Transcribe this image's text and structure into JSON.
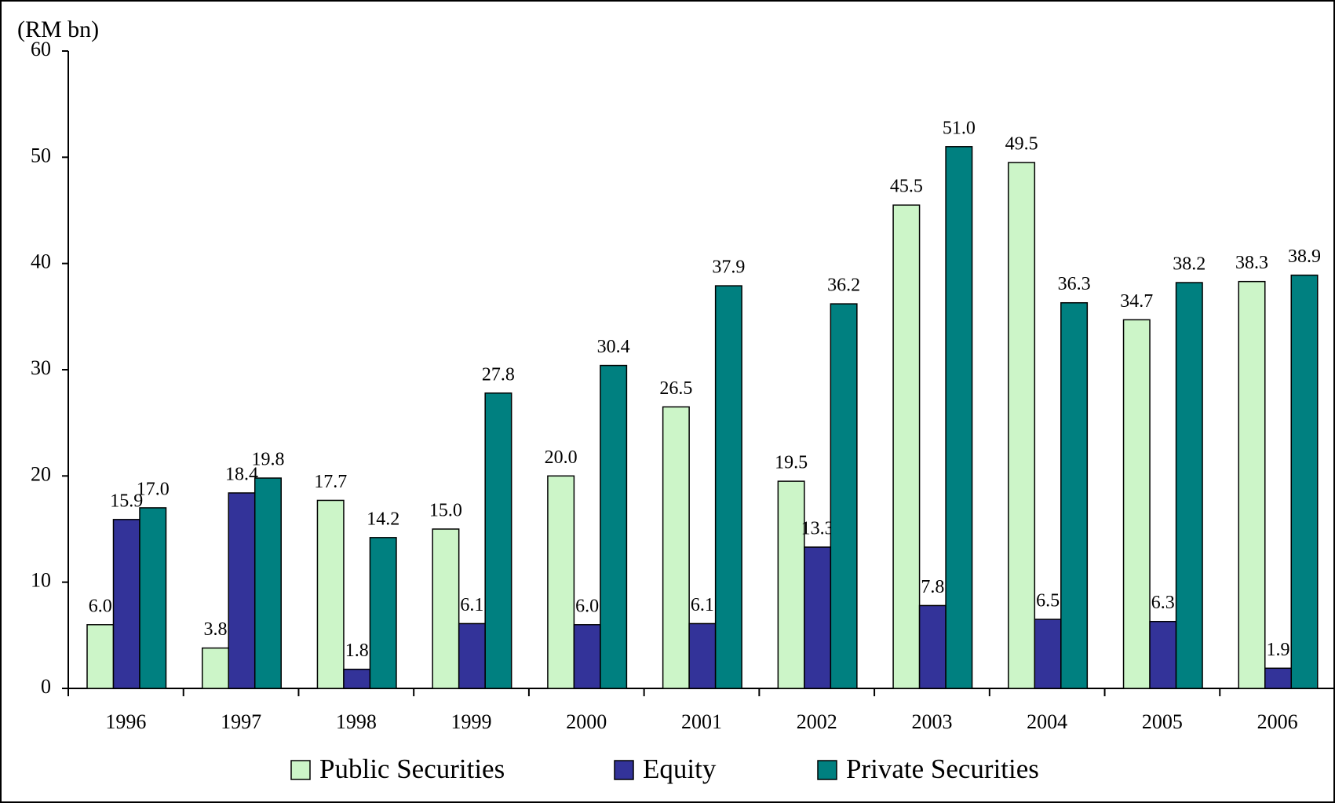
{
  "chart_data": {
    "type": "bar",
    "y_label": "(RM bn)",
    "categories": [
      "1996",
      "1997",
      "1998",
      "1999",
      "2000",
      "2001",
      "2002",
      "2003",
      "2004",
      "2005",
      "2006"
    ],
    "series": [
      {
        "name": "Public Securities",
        "color": "#ccf5c8",
        "values": [
          6.0,
          3.8,
          17.7,
          15.0,
          20.0,
          26.5,
          19.5,
          45.5,
          49.5,
          34.7,
          38.3
        ],
        "value_labels": [
          "6.0",
          "3.8",
          "17.7",
          "15.0",
          "20.0",
          "26.5",
          "19.5",
          "45.5",
          "49.5",
          "34.7",
          "38.3"
        ]
      },
      {
        "name": "Equity",
        "color": "#333399",
        "values": [
          15.9,
          18.4,
          1.8,
          6.1,
          6.0,
          6.1,
          13.3,
          7.8,
          6.5,
          6.3,
          1.9
        ],
        "value_labels": [
          "15.9",
          "18.4",
          "1.8",
          "6.1",
          "6.0",
          "6.1",
          "13.3",
          "7.8",
          "6.5",
          "6.3",
          "1.9"
        ]
      },
      {
        "name": "Private Securities",
        "color": "#008080",
        "values": [
          17.0,
          19.8,
          14.2,
          27.8,
          30.4,
          37.9,
          36.2,
          51.0,
          36.3,
          38.2,
          38.9
        ],
        "value_labels": [
          "17.0",
          "19.8",
          "14.2",
          "27.8",
          "30.4",
          "37.9",
          "36.2",
          "51.0",
          "36.3",
          "38.2",
          "38.9"
        ]
      }
    ],
    "ylim": [
      0,
      60
    ],
    "yticks": [
      0,
      10,
      20,
      30,
      40,
      50,
      60
    ],
    "grid": false,
    "legend": "bottom"
  }
}
